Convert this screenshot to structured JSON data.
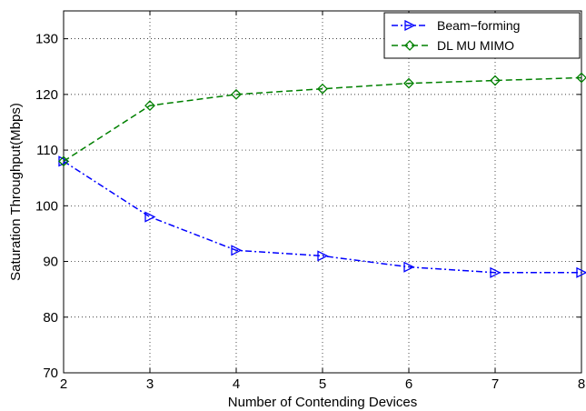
{
  "chart_data": {
    "type": "line",
    "title": "",
    "xlabel": "Number of Contending Devices",
    "ylabel": "Saturation Throughput(Mbps)",
    "xlim": [
      2,
      8
    ],
    "ylim": [
      70,
      135
    ],
    "x": [
      2,
      3,
      4,
      5,
      6,
      7,
      8
    ],
    "xticks": [
      "2",
      "3",
      "4",
      "5",
      "6",
      "7",
      "8"
    ],
    "yticks": [
      "70",
      "80",
      "90",
      "100",
      "110",
      "120",
      "130"
    ],
    "grid": true,
    "legend_position": "top-right",
    "series": [
      {
        "name": "Beam−forming",
        "color": "#0000ff",
        "marker": "triangle-right",
        "linestyle": "dash-dot",
        "values": [
          108,
          98,
          92,
          91,
          89,
          88,
          88
        ]
      },
      {
        "name": "DL MU MIMO",
        "color": "#008000",
        "marker": "diamond",
        "linestyle": "dashed",
        "values": [
          108,
          118,
          120,
          121,
          122,
          122.5,
          123
        ]
      }
    ]
  }
}
